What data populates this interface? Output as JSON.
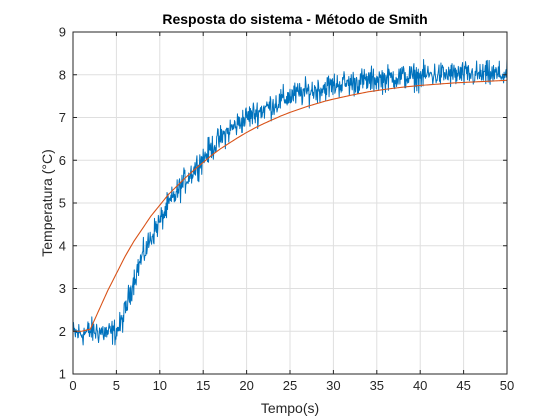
{
  "chart_data": {
    "type": "line",
    "title": "Resposta do sistema - Método de Smith",
    "xlabel": "Tempo(s)",
    "ylabel": "Temperatura (°C)",
    "xlim": [
      0,
      50
    ],
    "ylim": [
      1,
      9
    ],
    "xticks": [
      "0",
      "5",
      "10",
      "15",
      "20",
      "25",
      "30",
      "35",
      "40",
      "45",
      "50"
    ],
    "yticks": [
      "1",
      "2",
      "3",
      "4",
      "5",
      "6",
      "7",
      "8",
      "9"
    ],
    "grid": true,
    "legend": "none",
    "colors": {
      "measured": "#0072BD",
      "model": "#D95319",
      "grid": "#dfdfdf",
      "axis": "#262626"
    },
    "series": [
      {
        "style": "noisy-line",
        "color": "#0072BD",
        "x": [
          0,
          1,
          2,
          3,
          4,
          5,
          5.5,
          6,
          6.5,
          7,
          7.5,
          8,
          8.5,
          9,
          9.5,
          10,
          11,
          12,
          13,
          14,
          15,
          16,
          17,
          18,
          19,
          20,
          21,
          22,
          23,
          24,
          25,
          26,
          27,
          28,
          29,
          30,
          31,
          32,
          33,
          34,
          35,
          36,
          37,
          38,
          39,
          40,
          41,
          42,
          43,
          44,
          45,
          46,
          47,
          48,
          49,
          50
        ],
        "values": [
          1.95,
          1.95,
          2.0,
          2.0,
          1.95,
          2.0,
          2.15,
          2.45,
          2.85,
          3.2,
          3.5,
          3.75,
          3.95,
          4.2,
          4.4,
          4.55,
          4.95,
          5.25,
          5.55,
          5.8,
          6.05,
          6.3,
          6.5,
          6.7,
          6.85,
          7.0,
          7.1,
          7.2,
          7.3,
          7.4,
          7.5,
          7.55,
          7.6,
          7.65,
          7.7,
          7.75,
          7.8,
          7.8,
          7.85,
          7.85,
          7.9,
          7.9,
          7.95,
          7.95,
          7.95,
          7.95,
          8.0,
          8.0,
          8.0,
          8.0,
          8.0,
          8.0,
          8.0,
          8.0,
          8.0,
          8.0
        ],
        "noise_amplitude": 0.25
      },
      {
        "style": "smooth-line",
        "color": "#D95319",
        "x": [
          0,
          1,
          2,
          3,
          4,
          5,
          6,
          7,
          8,
          9,
          10,
          11,
          12,
          13,
          14,
          15,
          16,
          17,
          18,
          19,
          20,
          21,
          22,
          23,
          24,
          25,
          26,
          27,
          28,
          29,
          30,
          32,
          34,
          36,
          38,
          40,
          42,
          44,
          46,
          48,
          50
        ],
        "values": [
          2.0,
          2.0,
          2.05,
          2.5,
          2.95,
          3.35,
          3.75,
          4.1,
          4.4,
          4.7,
          4.95,
          5.2,
          5.4,
          5.6,
          5.78,
          5.95,
          6.12,
          6.27,
          6.4,
          6.53,
          6.65,
          6.76,
          6.86,
          6.95,
          7.04,
          7.12,
          7.19,
          7.26,
          7.32,
          7.38,
          7.43,
          7.52,
          7.6,
          7.66,
          7.71,
          7.75,
          7.78,
          7.81,
          7.83,
          7.85,
          7.87
        ]
      }
    ]
  }
}
